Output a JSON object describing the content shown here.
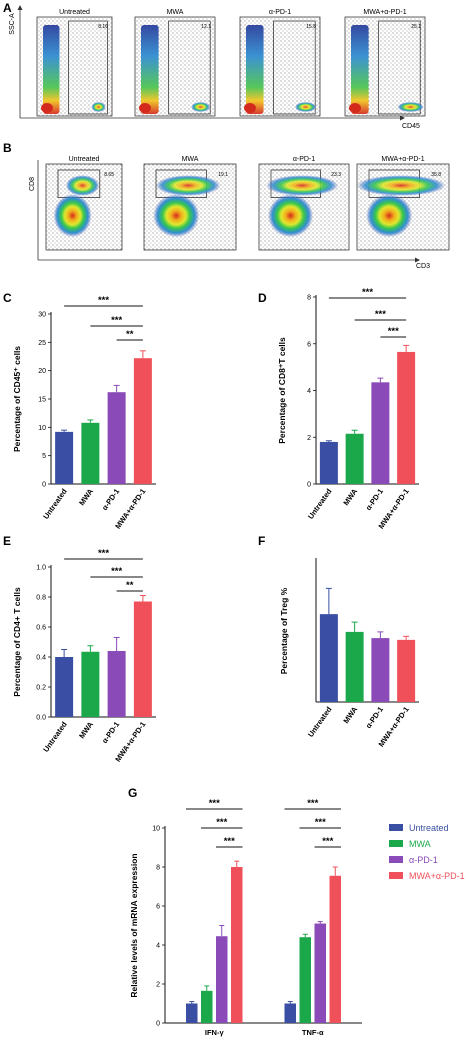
{
  "colors": {
    "untreated": "#3a4fa3",
    "mwa": "#1aa84a",
    "apd1": "#8a4ab8",
    "combo": "#f0505a"
  },
  "flow_panels": [
    {
      "letter": "A",
      "ylabel": "SSC-A",
      "xlabel": "CD45",
      "plots": [
        {
          "title": "Untreated",
          "value": "8.16"
        },
        {
          "title": "MWA",
          "value": "12.1"
        },
        {
          "title": "α-PD-1",
          "value": "15.8"
        },
        {
          "title": "MWA+α-PD-1",
          "value": "25.1"
        }
      ]
    },
    {
      "letter": "B",
      "ylabel": "CD8",
      "xlabel": "CD3",
      "plots": [
        {
          "title": "Untreated",
          "value": "8.65"
        },
        {
          "title": "MWA",
          "value": "19.1"
        },
        {
          "title": "α-PD-1",
          "value": "23.3"
        },
        {
          "title": "MWA+α-PD-1",
          "value": "35.8"
        }
      ]
    }
  ],
  "chart_data": [
    {
      "letter": "C",
      "type": "bar",
      "categories": [
        "Untreated",
        "MWA",
        "α-PD-1",
        "MWA+α-PD-1"
      ],
      "values": [
        9.2,
        10.8,
        16.2,
        22.2
      ],
      "errors": [
        0.3,
        0.5,
        1.2,
        1.3
      ],
      "ylabel": "Percentage of CD45⁺ cells",
      "ylim": [
        0,
        30
      ],
      "yticks": [
        "0",
        "5",
        "10",
        "15",
        "20",
        "25",
        "30"
      ],
      "significance": [
        {
          "from": 0,
          "to": 3,
          "label": "***"
        },
        {
          "from": 1,
          "to": 3,
          "label": "***"
        },
        {
          "from": 2,
          "to": 3,
          "label": "**"
        }
      ]
    },
    {
      "letter": "D",
      "type": "bar",
      "categories": [
        "Untreated",
        "MWA",
        "α-PD-1",
        "MWA+α-PD-1"
      ],
      "values": [
        1.8,
        2.15,
        4.35,
        5.65
      ],
      "errors": [
        0.05,
        0.15,
        0.18,
        0.28
      ],
      "ylabel": "Percentage of CD8⁺T cells",
      "ylim": [
        0,
        8
      ],
      "yticks": [
        "0",
        "2",
        "4",
        "6",
        "8"
      ],
      "significance": [
        {
          "from": 0,
          "to": 3,
          "label": "***"
        },
        {
          "from": 1,
          "to": 3,
          "label": "***"
        },
        {
          "from": 2,
          "to": 3,
          "label": "***"
        }
      ]
    },
    {
      "letter": "E",
      "type": "bar",
      "categories": [
        "Untreated",
        "MWA",
        "α-PD-1",
        "MWA+α-PD-1"
      ],
      "values": [
        0.4,
        0.435,
        0.44,
        0.77
      ],
      "errors": [
        0.05,
        0.04,
        0.09,
        0.04
      ],
      "ylabel": "Percentage of CD4+ T cells",
      "ylim": [
        0,
        1.0
      ],
      "yticks": [
        "0.0",
        "0.2",
        "0.4",
        "0.6",
        "0.8",
        "1.0"
      ],
      "significance": [
        {
          "from": 0,
          "to": 3,
          "label": "***"
        },
        {
          "from": 1,
          "to": 3,
          "label": "***"
        },
        {
          "from": 2,
          "to": 3,
          "label": "**"
        }
      ]
    },
    {
      "letter": "F",
      "type": "bar",
      "categories": [
        "Untreated",
        "MWA",
        "α-PD-1",
        "MWA+α-PD-1"
      ],
      "values": [
        4.95,
        3.95,
        3.6,
        3.5
      ],
      "errors": [
        1.45,
        0.55,
        0.35,
        0.2
      ],
      "ylabel": "Percentage of Treg %",
      "ylim": [
        0,
        8
      ],
      "yticks": [],
      "significance": []
    },
    {
      "letter": "G",
      "type": "bar",
      "groups": [
        "IFN-γ",
        "TNF-α"
      ],
      "ylabel": "Relative levels of mRNA expression",
      "ylim": [
        0,
        10
      ],
      "yticks": [
        "0",
        "2",
        "4",
        "6",
        "8",
        "10"
      ],
      "series": [
        {
          "name": "Untreated",
          "values": [
            1.0,
            1.0
          ],
          "errors": [
            0.1,
            0.1
          ]
        },
        {
          "name": "MWA",
          "values": [
            1.65,
            4.4
          ],
          "errors": [
            0.25,
            0.15
          ]
        },
        {
          "name": "α-PD-1",
          "values": [
            4.45,
            5.1
          ],
          "errors": [
            0.55,
            0.1
          ]
        },
        {
          "name": "MWA+α-PD-1",
          "values": [
            8.0,
            7.55
          ],
          "errors": [
            0.3,
            0.45
          ]
        }
      ],
      "significance": [
        {
          "group": 0,
          "from": 0,
          "to": 3,
          "label": "***"
        },
        {
          "group": 0,
          "from": 1,
          "to": 3,
          "label": "***"
        },
        {
          "group": 0,
          "from": 2,
          "to": 3,
          "label": "***"
        },
        {
          "group": 1,
          "from": 0,
          "to": 3,
          "label": "***"
        },
        {
          "group": 1,
          "from": 1,
          "to": 3,
          "label": "***"
        },
        {
          "group": 1,
          "from": 2,
          "to": 3,
          "label": "***"
        }
      ]
    }
  ]
}
